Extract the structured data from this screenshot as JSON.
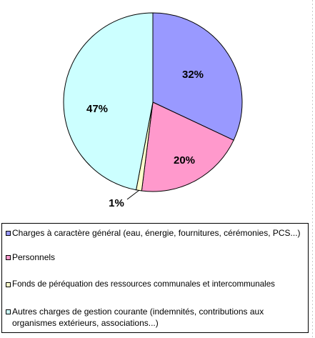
{
  "chart_data": {
    "type": "pie",
    "categories": [
      "Charges à caractère général (eau, énergie, fournitures, cérémonies, PCS...)",
      "Personnels",
      "Fonds de péréquation des ressources communales et intercommunales",
      "Autres charges de gestion courante (indemnités, contributions aux organismes extérieurs, associations...)"
    ],
    "values": [
      32,
      20,
      1,
      47
    ],
    "data_labels": [
      "32%",
      "20%",
      "1%",
      "47%"
    ],
    "colors": [
      "#9999ff",
      "#ff99cc",
      "#ffffcc",
      "#ccffff"
    ],
    "legend_placement": "bottom",
    "title": "",
    "xlabel": "",
    "ylabel": ""
  }
}
